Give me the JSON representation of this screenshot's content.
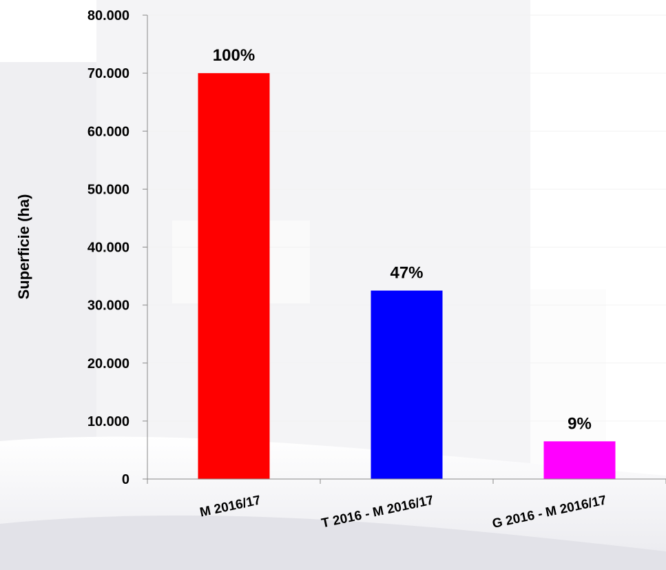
{
  "chart_data": {
    "type": "bar",
    "categories": [
      "M 2016/17",
      "T 2016 - M 2016/17",
      "G 2016 - M 2016/17"
    ],
    "values": [
      70000,
      32500,
      6500
    ],
    "data_labels": [
      "100%",
      "47%",
      "9%"
    ],
    "colors": [
      "#ff0000",
      "#0000ff",
      "#ff00ff"
    ],
    "title": "",
    "xlabel": "",
    "ylabel": "Superficie (ha)",
    "ylim": [
      0,
      80000
    ],
    "yticks": [
      0,
      10000,
      20000,
      30000,
      40000,
      50000,
      60000,
      70000,
      80000
    ],
    "ytick_labels": [
      "0",
      "10.000",
      "20.000",
      "30.000",
      "40.000",
      "50.000",
      "60.000",
      "70.000",
      "80.000"
    ],
    "grid": true,
    "legend": "none"
  }
}
